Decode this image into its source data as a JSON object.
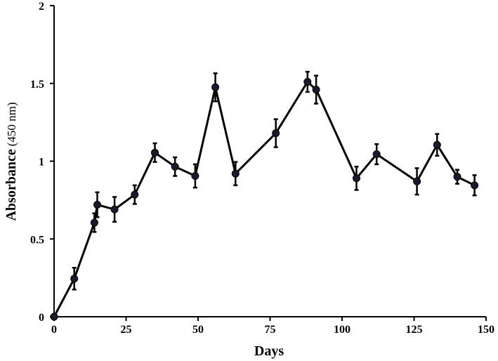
{
  "chart_data": {
    "type": "line",
    "title": "",
    "xlabel": "Days",
    "ylabel": "Absorbance",
    "ylabel_unit": "(450 nm)",
    "xlim": [
      0,
      150
    ],
    "ylim": [
      0,
      2
    ],
    "xticks": [
      0,
      25,
      50,
      75,
      100,
      125,
      150
    ],
    "yticks": [
      0,
      0.5,
      1,
      1.5,
      2
    ],
    "xtick_labels": [
      "0",
      "25",
      "50",
      "75",
      "100",
      "125",
      "150"
    ],
    "ytick_labels": [
      "0",
      "0.5",
      "1",
      "1.5",
      "2"
    ],
    "grid": false,
    "legend": "none",
    "series": [
      {
        "color": "#000000",
        "marker": "circle",
        "marker_color": "#1a1a2e",
        "x": [
          0,
          7,
          14,
          15,
          21,
          28,
          35,
          42,
          49,
          56,
          63,
          77,
          88,
          91,
          105,
          112,
          126,
          133,
          140,
          146
        ],
        "y": [
          0,
          0.245,
          0.605,
          0.72,
          0.69,
          0.785,
          1.055,
          0.965,
          0.905,
          1.475,
          0.92,
          1.18,
          1.51,
          1.46,
          0.89,
          1.045,
          0.87,
          1.105,
          0.9,
          0.845
        ],
        "error": [
          0,
          0.07,
          0.06,
          0.08,
          0.08,
          0.06,
          0.06,
          0.06,
          0.075,
          0.09,
          0.075,
          0.09,
          0.065,
          0.09,
          0.075,
          0.065,
          0.085,
          0.07,
          0.045,
          0.065
        ]
      }
    ]
  }
}
